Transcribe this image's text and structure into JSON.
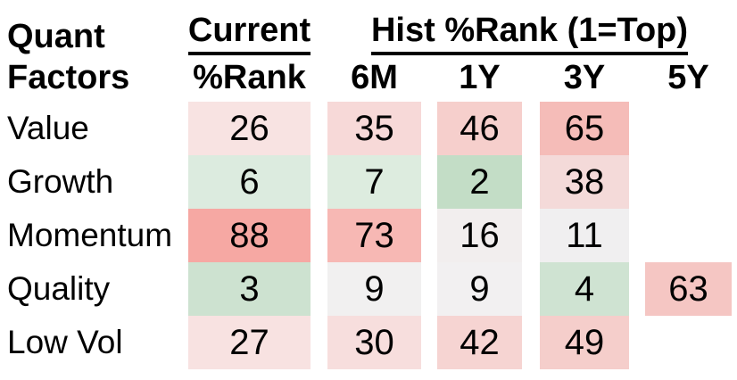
{
  "header": {
    "corner_line1": "Quant",
    "corner_line2": "Factors",
    "group_current": "Current",
    "group_hist": "Hist %Rank (1=Top)"
  },
  "chart_data": {
    "type": "heatmap",
    "title": "Quant Factors percentile ranks",
    "legend_note": "1=Top",
    "column_groups": [
      {
        "label": "Current",
        "columns": [
          "%Rank"
        ]
      },
      {
        "label": "Hist %Rank (1=Top)",
        "columns": [
          "6M",
          "1Y",
          "3Y",
          "5Y"
        ]
      }
    ],
    "columns": [
      "%Rank",
      "6M",
      "1Y",
      "3Y",
      "5Y"
    ],
    "rows": [
      "Value",
      "Growth",
      "Momentum",
      "Quality",
      "Low Vol"
    ],
    "values": [
      [
        26,
        35,
        46,
        65,
        null
      ],
      [
        6,
        7,
        2,
        38,
        null
      ],
      [
        88,
        73,
        16,
        11,
        null
      ],
      [
        3,
        9,
        9,
        4,
        63
      ],
      [
        27,
        30,
        42,
        49,
        null
      ]
    ],
    "cell_colors": [
      [
        "#f8e3e2",
        "#f7d9d8",
        "#f6cfcc",
        "#f5bcb8",
        null
      ],
      [
        "#dcebdf",
        "#ddecdf",
        "#c3ddc6",
        "#f4dad9",
        null
      ],
      [
        "#f6a8a3",
        "#f7b8b4",
        "#f2eeee",
        "#f0eff0",
        null
      ],
      [
        "#cde2d0",
        "#f1f0f0",
        "#f2f0f1",
        "#cfe3d2",
        "#f5c6c3"
      ],
      [
        "#f8e2e1",
        "#f7dedd",
        "#f6d4d2",
        "#f5cecb",
        null
      ]
    ],
    "color_scale": {
      "low_green": "#c3ddc6",
      "mid_white": "#f0eff0",
      "high_red": "#f6a8a3"
    },
    "axis_note": "low rank = green (top), high rank = red",
    "grid": false,
    "legend_position": "none"
  }
}
